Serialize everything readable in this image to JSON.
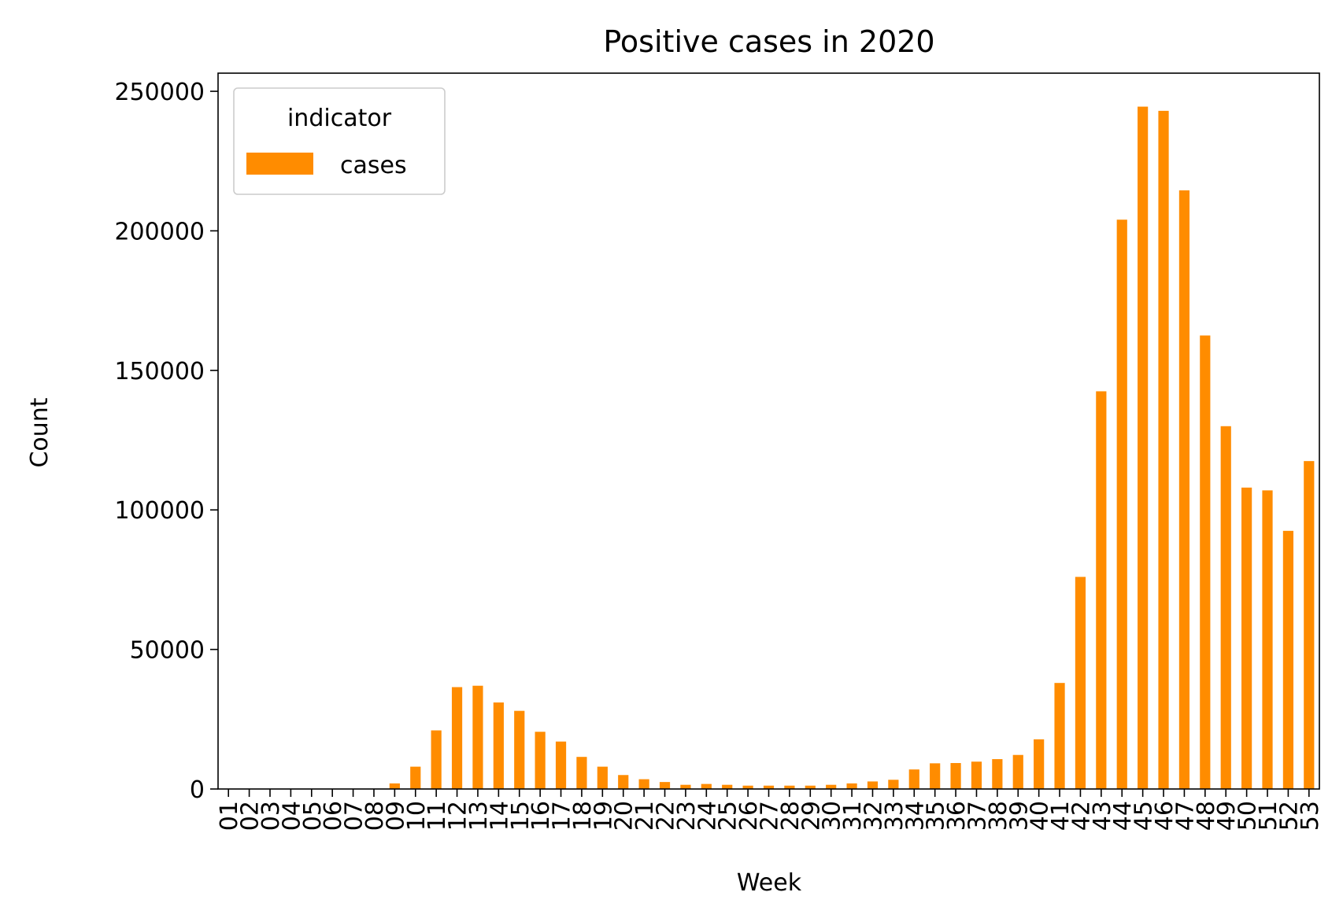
{
  "chart_data": {
    "type": "bar",
    "title": "Positive cases in 2020",
    "xlabel": "Week",
    "ylabel": "Count",
    "ylim": [
      0,
      256500
    ],
    "yticks": [
      0,
      50000,
      100000,
      150000,
      200000,
      250000
    ],
    "grid": false,
    "legend": {
      "title": "indicator",
      "placement": "top-left"
    },
    "categories": [
      "01",
      "02",
      "03",
      "04",
      "05",
      "06",
      "07",
      "08",
      "09",
      "10",
      "11",
      "12",
      "13",
      "14",
      "15",
      "16",
      "17",
      "18",
      "19",
      "20",
      "21",
      "22",
      "23",
      "24",
      "25",
      "26",
      "27",
      "28",
      "29",
      "30",
      "31",
      "32",
      "33",
      "34",
      "35",
      "36",
      "37",
      "38",
      "39",
      "40",
      "41",
      "42",
      "43",
      "44",
      "45",
      "46",
      "47",
      "48",
      "49",
      "50",
      "51",
      "52",
      "53"
    ],
    "series": [
      {
        "name": "cases",
        "color": "#ff8c00",
        "values": [
          0,
          0,
          0,
          0,
          0,
          0,
          0,
          0,
          2000,
          8000,
          21000,
          36500,
          37000,
          31000,
          28000,
          20500,
          17000,
          11500,
          8000,
          5000,
          3500,
          2500,
          1500,
          1800,
          1500,
          1200,
          1200,
          1200,
          1200,
          1500,
          2000,
          2700,
          3300,
          7000,
          9200,
          9300,
          9800,
          10700,
          12200,
          17800,
          38000,
          76000,
          142500,
          204000,
          244500,
          243000,
          214500,
          162500,
          130000,
          108000,
          107000,
          92500,
          117500
        ]
      }
    ]
  }
}
